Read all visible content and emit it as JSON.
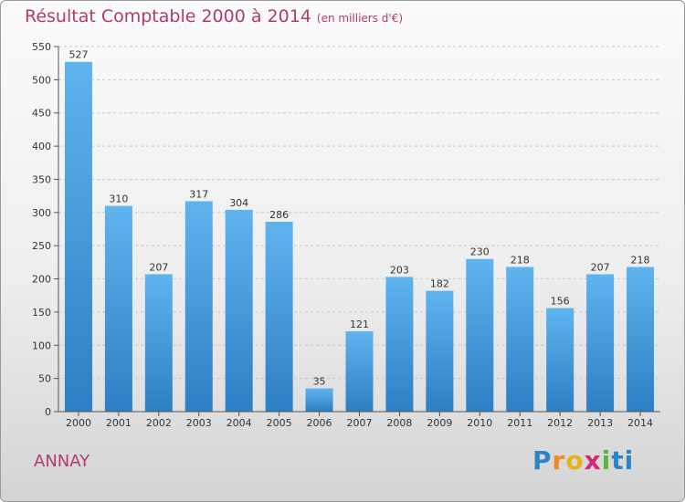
{
  "header": {
    "title": "Résultat Comptable 2000 à 2014",
    "subtitle": "(en milliers d'€)"
  },
  "footer": {
    "town": "ANNAY",
    "logo": [
      "P",
      "r",
      "o",
      "x",
      "i",
      "ti"
    ]
  },
  "colors": {
    "title": "#b03a6e",
    "bar_top": "#5fb4ee",
    "bar_bottom": "#2c7fc4"
  },
  "chart_data": {
    "type": "bar",
    "title": "Résultat Comptable 2000 à 2014",
    "ylabel": "en milliers d'€",
    "xlabel": "",
    "categories": [
      "2000",
      "2001",
      "2002",
      "2003",
      "2004",
      "2005",
      "2006",
      "2007",
      "2008",
      "2009",
      "2010",
      "2011",
      "2012",
      "2013",
      "2014"
    ],
    "values": [
      527,
      310,
      207,
      317,
      304,
      286,
      35,
      121,
      203,
      182,
      230,
      218,
      156,
      207,
      218
    ],
    "ylim": [
      0,
      550
    ],
    "yticks": [
      0,
      50,
      100,
      150,
      200,
      250,
      300,
      350,
      400,
      450,
      500,
      550
    ],
    "grid": true
  }
}
